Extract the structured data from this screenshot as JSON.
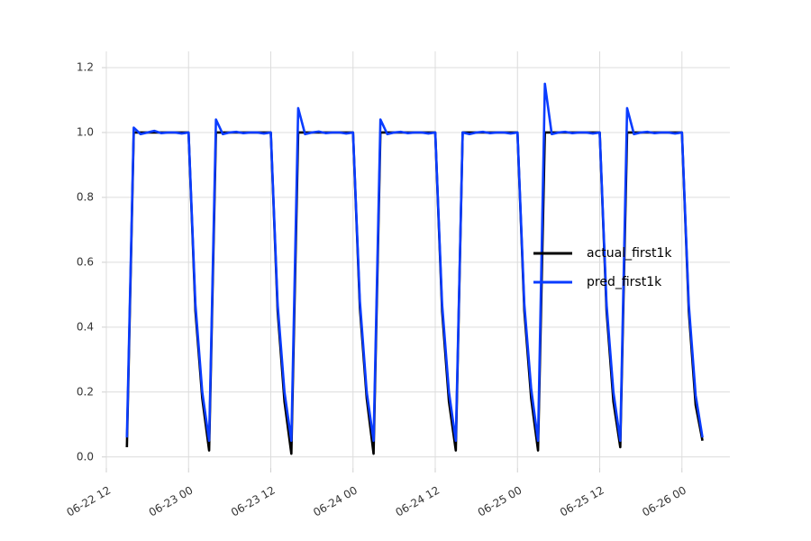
{
  "chart_data": {
    "type": "line",
    "x": [
      "06-22 15",
      "06-22 16",
      "06-22 17",
      "06-22 18",
      "06-22 19",
      "06-22 20",
      "06-22 21",
      "06-22 22",
      "06-22 23",
      "06-23 00",
      "06-23 01",
      "06-23 02",
      "06-23 03",
      "06-23 04",
      "06-23 05",
      "06-23 06",
      "06-23 07",
      "06-23 08",
      "06-23 09",
      "06-23 10",
      "06-23 11",
      "06-23 12",
      "06-23 13",
      "06-23 14",
      "06-23 15",
      "06-23 16",
      "06-23 17",
      "06-23 18",
      "06-23 19",
      "06-23 20",
      "06-23 21",
      "06-23 22",
      "06-23 23",
      "06-24 00",
      "06-24 01",
      "06-24 02",
      "06-24 03",
      "06-24 04",
      "06-24 05",
      "06-24 06",
      "06-24 07",
      "06-24 08",
      "06-24 09",
      "06-24 10",
      "06-24 11",
      "06-24 12",
      "06-24 13",
      "06-24 14",
      "06-24 15",
      "06-24 16",
      "06-24 17",
      "06-24 18",
      "06-24 19",
      "06-24 20",
      "06-24 21",
      "06-24 22",
      "06-24 23",
      "06-25 00",
      "06-25 01",
      "06-25 02",
      "06-25 03",
      "06-25 04",
      "06-25 05",
      "06-25 06",
      "06-25 07",
      "06-25 08",
      "06-25 09",
      "06-25 10",
      "06-25 11",
      "06-25 12",
      "06-25 13",
      "06-25 14",
      "06-25 15",
      "06-25 16",
      "06-25 17",
      "06-25 18",
      "06-25 19",
      "06-25 20",
      "06-25 21",
      "06-25 22",
      "06-25 23",
      "06-26 00",
      "06-26 01",
      "06-26 02",
      "06-26 03"
    ],
    "series": [
      {
        "name": "actual_first1k",
        "color": "#000000",
        "values": [
          0.03,
          1,
          1,
          1,
          1,
          1,
          1,
          1,
          1,
          1,
          0.45,
          0.18,
          0.02,
          1,
          1,
          1,
          1,
          1,
          1,
          1,
          1,
          1,
          0.45,
          0.17,
          0.01,
          1,
          1,
          1,
          1,
          1,
          1,
          1,
          1,
          1,
          0.46,
          0.18,
          0.01,
          1,
          1,
          1,
          1,
          1,
          1,
          1,
          1,
          1,
          0.45,
          0.17,
          0.02,
          1,
          1,
          1,
          1,
          1,
          1,
          1,
          1,
          1,
          0.45,
          0.18,
          0.02,
          1,
          1,
          1,
          1,
          1,
          1,
          1,
          1,
          1,
          0.45,
          0.17,
          0.03,
          1,
          1,
          1,
          1,
          1,
          1,
          1,
          1,
          1,
          0.45,
          0.16,
          0.05
        ]
      },
      {
        "name": "pred_first1k",
        "color": "#0a3cff",
        "values": [
          0.06,
          1.015,
          0.995,
          1,
          1.005,
          0.998,
          1,
          1,
          0.997,
          1,
          0.47,
          0.2,
          0.05,
          1.04,
          0.995,
          1,
          1.002,
          0.998,
          1,
          1,
          0.997,
          1,
          0.47,
          0.2,
          0.05,
          1.075,
          0.995,
          1,
          1.003,
          0.998,
          1,
          1,
          0.997,
          1,
          0.48,
          0.2,
          0.05,
          1.04,
          0.995,
          1,
          1.002,
          0.998,
          1,
          1,
          0.997,
          1,
          0.47,
          0.2,
          0.05,
          1.0,
          0.995,
          1,
          1.002,
          0.998,
          1,
          1,
          0.997,
          1,
          0.47,
          0.21,
          0.05,
          1.15,
          0.995,
          1,
          1.002,
          0.998,
          1,
          1,
          0.997,
          1,
          0.47,
          0.2,
          0.05,
          1.075,
          0.995,
          1,
          1.002,
          0.998,
          1,
          1,
          0.997,
          1,
          0.47,
          0.19,
          0.06
        ]
      }
    ],
    "xlim": [
      "06-22 12",
      "06-26 07"
    ],
    "xticks": [
      "06-22 12",
      "06-23 00",
      "06-23 12",
      "06-24 00",
      "06-24 12",
      "06-25 00",
      "06-25 12",
      "06-26 00"
    ],
    "ylim": [
      -0.034,
      1.25
    ],
    "yticks": [
      {
        "value": 0,
        "label": "0.0"
      },
      0.2,
      0.4,
      0.6,
      0.8,
      {
        "value": 1,
        "label": "1.0"
      },
      1.2
    ],
    "grid": true,
    "legend": "right"
  }
}
